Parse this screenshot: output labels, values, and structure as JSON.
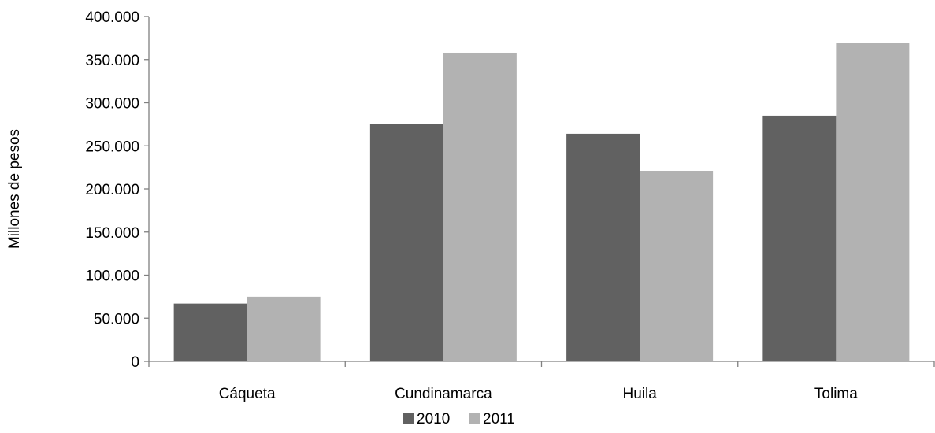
{
  "chart_data": {
    "type": "bar",
    "title": "",
    "xlabel": "",
    "ylabel": "Millones  de pesos",
    "categories": [
      "Cáqueta",
      "Cundinamarca",
      "Huila",
      "Tolima"
    ],
    "series": [
      {
        "name": "2010",
        "color": "#616161",
        "values": [
          67000,
          275000,
          264000,
          285000
        ]
      },
      {
        "name": "2011",
        "color": "#b2b2b2",
        "values": [
          75000,
          358000,
          221000,
          369000
        ]
      }
    ],
    "ylim": [
      0,
      400000
    ],
    "yticks": [
      0,
      50000,
      100000,
      150000,
      200000,
      250000,
      300000,
      350000,
      400000
    ],
    "ytick_labels": [
      "0",
      "50.000",
      "100.000",
      "150.000",
      "200.000",
      "250.000",
      "300.000",
      "350.000",
      "400.000"
    ],
    "grid": false,
    "legend_position": "bottom"
  }
}
